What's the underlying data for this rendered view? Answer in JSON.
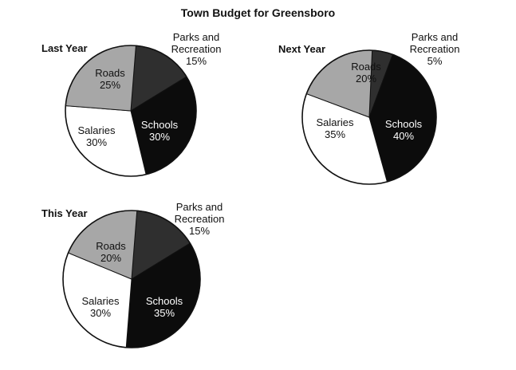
{
  "title": "Town Budget for Greensboro",
  "chart_data": [
    {
      "type": "pie",
      "title": "Last Year",
      "slices": [
        {
          "label": "Parks and Recreation",
          "display": [
            "Parks and",
            "Recreation"
          ],
          "value": 15,
          "value_label": "15%",
          "color": "#2f2f2f"
        },
        {
          "label": "Schools",
          "display": [
            "Schools"
          ],
          "value": 30,
          "value_label": "30%",
          "color": "#0c0c0c"
        },
        {
          "label": "Salaries",
          "display": [
            "Salaries"
          ],
          "value": 30,
          "value_label": "30%",
          "color": "#ffffff"
        },
        {
          "label": "Roads",
          "display": [
            "Roads"
          ],
          "value": 25,
          "value_label": "25%",
          "color": "#a7a7a7"
        }
      ]
    },
    {
      "type": "pie",
      "title": "Next Year",
      "slices": [
        {
          "label": "Parks and Recreation",
          "display": [
            "Parks and",
            "Recreation"
          ],
          "value": 5,
          "value_label": "5%",
          "color": "#2f2f2f"
        },
        {
          "label": "Schools",
          "display": [
            "Schools"
          ],
          "value": 40,
          "value_label": "40%",
          "color": "#0c0c0c"
        },
        {
          "label": "Salaries",
          "display": [
            "Salaries"
          ],
          "value": 35,
          "value_label": "35%",
          "color": "#ffffff"
        },
        {
          "label": "Roads",
          "display": [
            "Roads"
          ],
          "value": 20,
          "value_label": "20%",
          "color": "#a7a7a7"
        }
      ]
    },
    {
      "type": "pie",
      "title": "This Year",
      "slices": [
        {
          "label": "Parks and Recreation",
          "display": [
            "Parks and",
            "Recreation"
          ],
          "value": 15,
          "value_label": "15%",
          "color": "#2f2f2f"
        },
        {
          "label": "Schools",
          "display": [
            "Schools"
          ],
          "value": 35,
          "value_label": "35%",
          "color": "#0c0c0c"
        },
        {
          "label": "Salaries",
          "display": [
            "Salaries"
          ],
          "value": 30,
          "value_label": "30%",
          "color": "#ffffff"
        },
        {
          "label": "Roads",
          "display": [
            "Roads"
          ],
          "value": 20,
          "value_label": "20%",
          "color": "#a7a7a7"
        }
      ]
    }
  ]
}
